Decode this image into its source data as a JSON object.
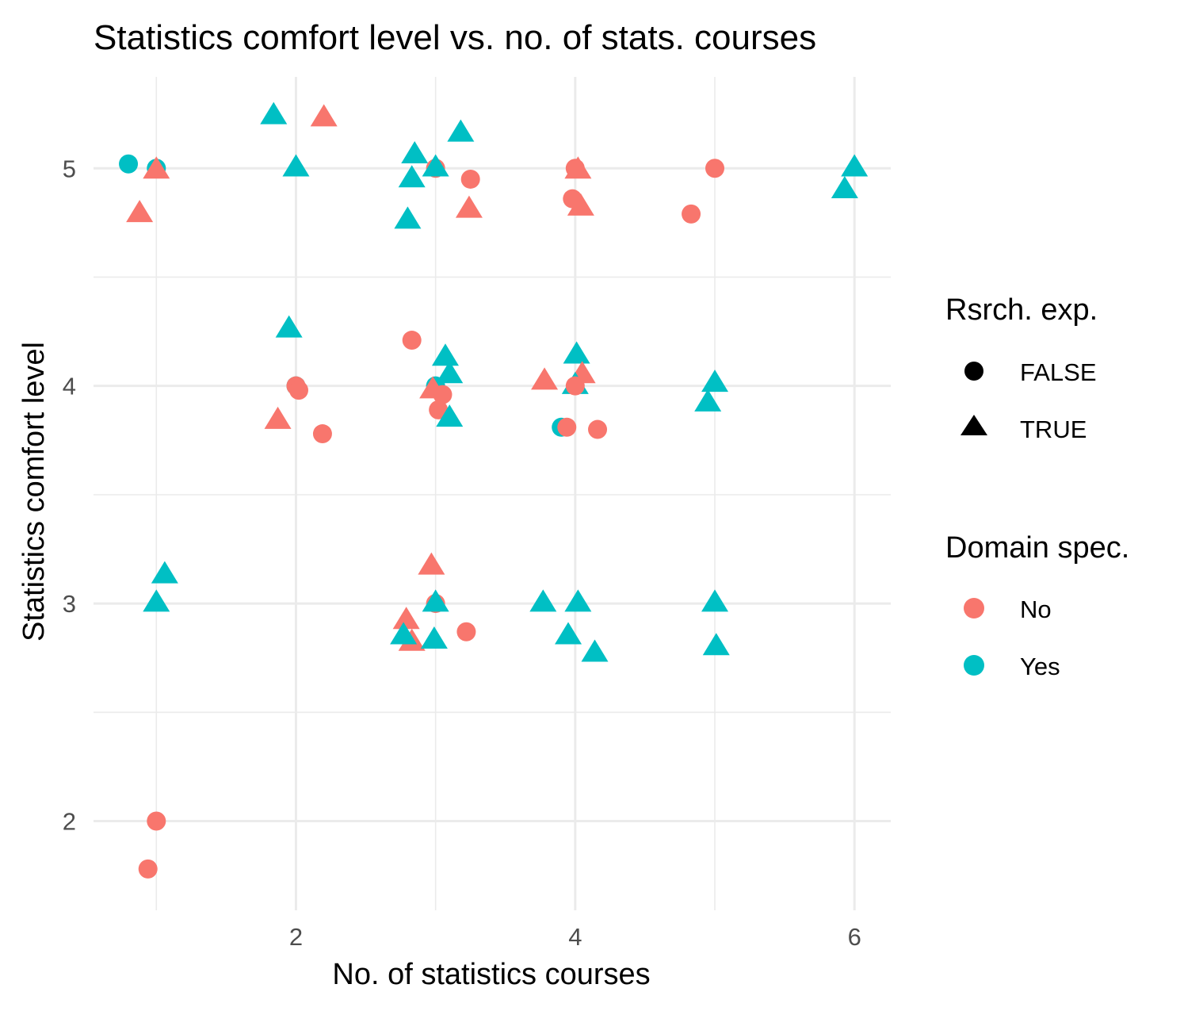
{
  "chart_data": {
    "type": "scatter",
    "title": "Statistics comfort level vs. no. of stats. courses",
    "xlabel": "No. of statistics courses",
    "ylabel": "Statistics comfort level",
    "xlim": [
      0.55,
      6.26
    ],
    "ylim": [
      1.59,
      5.42
    ],
    "x_ticks": [
      2,
      4,
      6
    ],
    "y_ticks": [
      2,
      3,
      4,
      5
    ],
    "x_minor": [
      1,
      3,
      5
    ],
    "y_minor": [
      2.5,
      3.5,
      4.5
    ],
    "grid": true,
    "colors": {
      "No": "#F8766D",
      "Yes": "#00BFC4"
    },
    "legends": [
      {
        "title": "Rsrch. exp.",
        "type": "shape",
        "entries": [
          {
            "label": "FALSE",
            "shape": "circle"
          },
          {
            "label": "TRUE",
            "shape": "triangle"
          }
        ]
      },
      {
        "title": "Domain spec.",
        "type": "color",
        "entries": [
          {
            "label": "No",
            "color": "#F8766D"
          },
          {
            "label": "Yes",
            "color": "#00BFC4"
          }
        ]
      }
    ],
    "points": [
      {
        "x": 0.8,
        "y": 5.02,
        "rsrch": "FALSE",
        "domain": "Yes"
      },
      {
        "x": 1.0,
        "y": 5.0,
        "rsrch": "FALSE",
        "domain": "Yes"
      },
      {
        "x": 1.0,
        "y": 5.0,
        "rsrch": "TRUE",
        "domain": "No"
      },
      {
        "x": 0.88,
        "y": 4.8,
        "rsrch": "TRUE",
        "domain": "No"
      },
      {
        "x": 1.84,
        "y": 5.25,
        "rsrch": "TRUE",
        "domain": "Yes"
      },
      {
        "x": 2.2,
        "y": 5.24,
        "rsrch": "TRUE",
        "domain": "No"
      },
      {
        "x": 2.0,
        "y": 5.01,
        "rsrch": "TRUE",
        "domain": "Yes"
      },
      {
        "x": 2.85,
        "y": 5.07,
        "rsrch": "TRUE",
        "domain": "Yes"
      },
      {
        "x": 3.18,
        "y": 5.17,
        "rsrch": "TRUE",
        "domain": "Yes"
      },
      {
        "x": 3.0,
        "y": 5.0,
        "rsrch": "FALSE",
        "domain": "No"
      },
      {
        "x": 3.0,
        "y": 5.01,
        "rsrch": "TRUE",
        "domain": "Yes"
      },
      {
        "x": 2.83,
        "y": 4.96,
        "rsrch": "TRUE",
        "domain": "Yes"
      },
      {
        "x": 3.25,
        "y": 4.95,
        "rsrch": "FALSE",
        "domain": "No"
      },
      {
        "x": 3.24,
        "y": 4.82,
        "rsrch": "TRUE",
        "domain": "No"
      },
      {
        "x": 2.8,
        "y": 4.77,
        "rsrch": "TRUE",
        "domain": "Yes"
      },
      {
        "x": 4.0,
        "y": 5.0,
        "rsrch": "FALSE",
        "domain": "No"
      },
      {
        "x": 4.02,
        "y": 5.0,
        "rsrch": "TRUE",
        "domain": "No"
      },
      {
        "x": 3.98,
        "y": 4.86,
        "rsrch": "FALSE",
        "domain": "No"
      },
      {
        "x": 4.04,
        "y": 4.83,
        "rsrch": "TRUE",
        "domain": "No"
      },
      {
        "x": 5.0,
        "y": 5.0,
        "rsrch": "FALSE",
        "domain": "No"
      },
      {
        "x": 4.83,
        "y": 4.79,
        "rsrch": "FALSE",
        "domain": "No"
      },
      {
        "x": 6.0,
        "y": 5.01,
        "rsrch": "TRUE",
        "domain": "Yes"
      },
      {
        "x": 5.93,
        "y": 4.91,
        "rsrch": "TRUE",
        "domain": "Yes"
      },
      {
        "x": 1.95,
        "y": 4.27,
        "rsrch": "TRUE",
        "domain": "Yes"
      },
      {
        "x": 2.0,
        "y": 4.0,
        "rsrch": "FALSE",
        "domain": "Yes"
      },
      {
        "x": 2.0,
        "y": 4.0,
        "rsrch": "FALSE",
        "domain": "No"
      },
      {
        "x": 2.02,
        "y": 3.98,
        "rsrch": "FALSE",
        "domain": "No"
      },
      {
        "x": 1.87,
        "y": 3.85,
        "rsrch": "TRUE",
        "domain": "No"
      },
      {
        "x": 2.19,
        "y": 3.78,
        "rsrch": "FALSE",
        "domain": "No"
      },
      {
        "x": 2.83,
        "y": 4.21,
        "rsrch": "FALSE",
        "domain": "No"
      },
      {
        "x": 3.07,
        "y": 4.14,
        "rsrch": "TRUE",
        "domain": "Yes"
      },
      {
        "x": 3.1,
        "y": 4.06,
        "rsrch": "TRUE",
        "domain": "Yes"
      },
      {
        "x": 3.0,
        "y": 4.0,
        "rsrch": "FALSE",
        "domain": "Yes"
      },
      {
        "x": 2.98,
        "y": 3.99,
        "rsrch": "TRUE",
        "domain": "No"
      },
      {
        "x": 3.05,
        "y": 3.96,
        "rsrch": "FALSE",
        "domain": "No"
      },
      {
        "x": 3.02,
        "y": 3.89,
        "rsrch": "FALSE",
        "domain": "No"
      },
      {
        "x": 3.1,
        "y": 3.86,
        "rsrch": "TRUE",
        "domain": "Yes"
      },
      {
        "x": 4.01,
        "y": 4.15,
        "rsrch": "TRUE",
        "domain": "Yes"
      },
      {
        "x": 4.05,
        "y": 4.06,
        "rsrch": "TRUE",
        "domain": "No"
      },
      {
        "x": 3.78,
        "y": 4.03,
        "rsrch": "TRUE",
        "domain": "No"
      },
      {
        "x": 4.0,
        "y": 4.01,
        "rsrch": "TRUE",
        "domain": "Yes"
      },
      {
        "x": 4.0,
        "y": 4.0,
        "rsrch": "FALSE",
        "domain": "No"
      },
      {
        "x": 3.9,
        "y": 3.81,
        "rsrch": "FALSE",
        "domain": "Yes"
      },
      {
        "x": 3.94,
        "y": 3.81,
        "rsrch": "FALSE",
        "domain": "No"
      },
      {
        "x": 4.16,
        "y": 3.8,
        "rsrch": "FALSE",
        "domain": "No"
      },
      {
        "x": 5.0,
        "y": 4.02,
        "rsrch": "TRUE",
        "domain": "Yes"
      },
      {
        "x": 4.95,
        "y": 3.93,
        "rsrch": "TRUE",
        "domain": "Yes"
      },
      {
        "x": 1.06,
        "y": 3.14,
        "rsrch": "TRUE",
        "domain": "Yes"
      },
      {
        "x": 1.0,
        "y": 3.01,
        "rsrch": "TRUE",
        "domain": "Yes"
      },
      {
        "x": 2.97,
        "y": 3.18,
        "rsrch": "TRUE",
        "domain": "No"
      },
      {
        "x": 3.0,
        "y": 3.0,
        "rsrch": "FALSE",
        "domain": "No"
      },
      {
        "x": 3.0,
        "y": 3.01,
        "rsrch": "TRUE",
        "domain": "Yes"
      },
      {
        "x": 2.79,
        "y": 2.93,
        "rsrch": "TRUE",
        "domain": "No"
      },
      {
        "x": 2.83,
        "y": 2.83,
        "rsrch": "TRUE",
        "domain": "No"
      },
      {
        "x": 2.77,
        "y": 2.86,
        "rsrch": "TRUE",
        "domain": "Yes"
      },
      {
        "x": 2.99,
        "y": 2.84,
        "rsrch": "TRUE",
        "domain": "Yes"
      },
      {
        "x": 3.22,
        "y": 2.87,
        "rsrch": "FALSE",
        "domain": "No"
      },
      {
        "x": 3.77,
        "y": 3.01,
        "rsrch": "TRUE",
        "domain": "Yes"
      },
      {
        "x": 4.02,
        "y": 3.01,
        "rsrch": "TRUE",
        "domain": "Yes"
      },
      {
        "x": 3.95,
        "y": 2.86,
        "rsrch": "TRUE",
        "domain": "Yes"
      },
      {
        "x": 4.14,
        "y": 2.78,
        "rsrch": "TRUE",
        "domain": "Yes"
      },
      {
        "x": 5.0,
        "y": 3.01,
        "rsrch": "TRUE",
        "domain": "Yes"
      },
      {
        "x": 5.01,
        "y": 2.81,
        "rsrch": "TRUE",
        "domain": "Yes"
      },
      {
        "x": 1.0,
        "y": 2.0,
        "rsrch": "FALSE",
        "domain": "No"
      },
      {
        "x": 0.94,
        "y": 1.78,
        "rsrch": "FALSE",
        "domain": "No"
      }
    ]
  }
}
